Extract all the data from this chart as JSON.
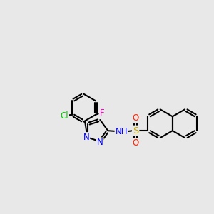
{
  "background_color": "#e8e8e8",
  "atom_colors": {
    "Cl": "#00cc00",
    "F": "#ff00bb",
    "N": "#0000ff",
    "S": "#ccaa00",
    "O": "#ff2200",
    "C": "#000000"
  },
  "bond_width": 1.5,
  "font_size": 8.5,
  "fig_size": [
    3.0,
    3.0
  ],
  "dpi": 100
}
